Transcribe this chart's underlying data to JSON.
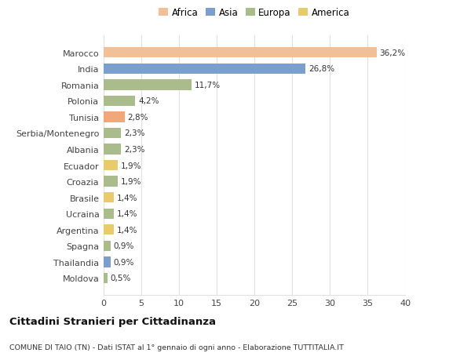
{
  "categories": [
    "Marocco",
    "India",
    "Romania",
    "Polonia",
    "Tunisia",
    "Serbia/Montenegro",
    "Albania",
    "Ecuador",
    "Croazia",
    "Brasile",
    "Ucraina",
    "Argentina",
    "Spagna",
    "Thailandia",
    "Moldova"
  ],
  "values": [
    36.2,
    26.8,
    11.7,
    4.2,
    2.8,
    2.3,
    2.3,
    1.9,
    1.9,
    1.4,
    1.4,
    1.4,
    0.9,
    0.9,
    0.5
  ],
  "labels": [
    "36,2%",
    "26,8%",
    "11,7%",
    "4,2%",
    "2,8%",
    "2,3%",
    "2,3%",
    "1,9%",
    "1,9%",
    "1,4%",
    "1,4%",
    "1,4%",
    "0,9%",
    "0,9%",
    "0,5%"
  ],
  "colors": [
    "#F2C097",
    "#7B9FCC",
    "#AABB8C",
    "#AABB8C",
    "#F0A878",
    "#AABB8C",
    "#AABB8C",
    "#E8CC6C",
    "#AABB8C",
    "#E8CC6C",
    "#AABB8C",
    "#E8CC6C",
    "#AABB8C",
    "#7B9FCC",
    "#AABB8C"
  ],
  "legend_labels": [
    "Africa",
    "Asia",
    "Europa",
    "America"
  ],
  "legend_colors": [
    "#F2C097",
    "#7B9FCC",
    "#AABB8C",
    "#E8CC6C"
  ],
  "title1": "Cittadini Stranieri per Cittadinanza",
  "title2": "COMUNE DI TAIO (TN) - Dati ISTAT al 1° gennaio di ogni anno - Elaborazione TUTTITALIA.IT",
  "xlim": [
    0,
    40
  ],
  "xticks": [
    0,
    5,
    10,
    15,
    20,
    25,
    30,
    35,
    40
  ],
  "bg_color": "#FFFFFF",
  "grid_color": "#E0E0E0"
}
